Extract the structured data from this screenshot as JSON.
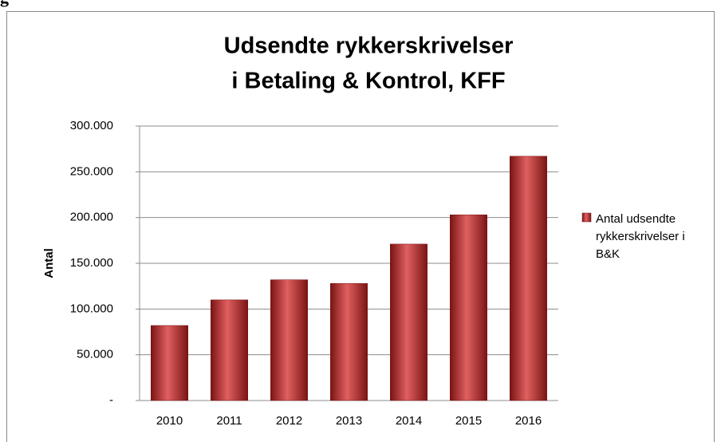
{
  "heading": "g",
  "chart_data": {
    "type": "bar",
    "title": [
      "Udsendte rykkerskrivelser",
      "i Betaling & Kontrol, KFF"
    ],
    "ylabel": "Antal",
    "categories": [
      "2010",
      "2011",
      "2012",
      "2013",
      "2014",
      "2015",
      "2016"
    ],
    "series": [
      {
        "name": "Antal udsendte rykkerskrivelser i B&K",
        "color": "#c0302c",
        "values": [
          82000,
          110000,
          132000,
          128000,
          171000,
          203000,
          267000
        ]
      }
    ],
    "ylim": [
      0,
      300000
    ],
    "yticks": [
      {
        "value": 0,
        "label": "-"
      },
      {
        "value": 50000,
        "label": "50.000"
      },
      {
        "value": 100000,
        "label": "100.000"
      },
      {
        "value": 150000,
        "label": "150.000"
      },
      {
        "value": 200000,
        "label": "200.000"
      },
      {
        "value": 250000,
        "label": "250.000"
      },
      {
        "value": 300000,
        "label": "300.000"
      }
    ],
    "grid": true,
    "legend": "right"
  }
}
